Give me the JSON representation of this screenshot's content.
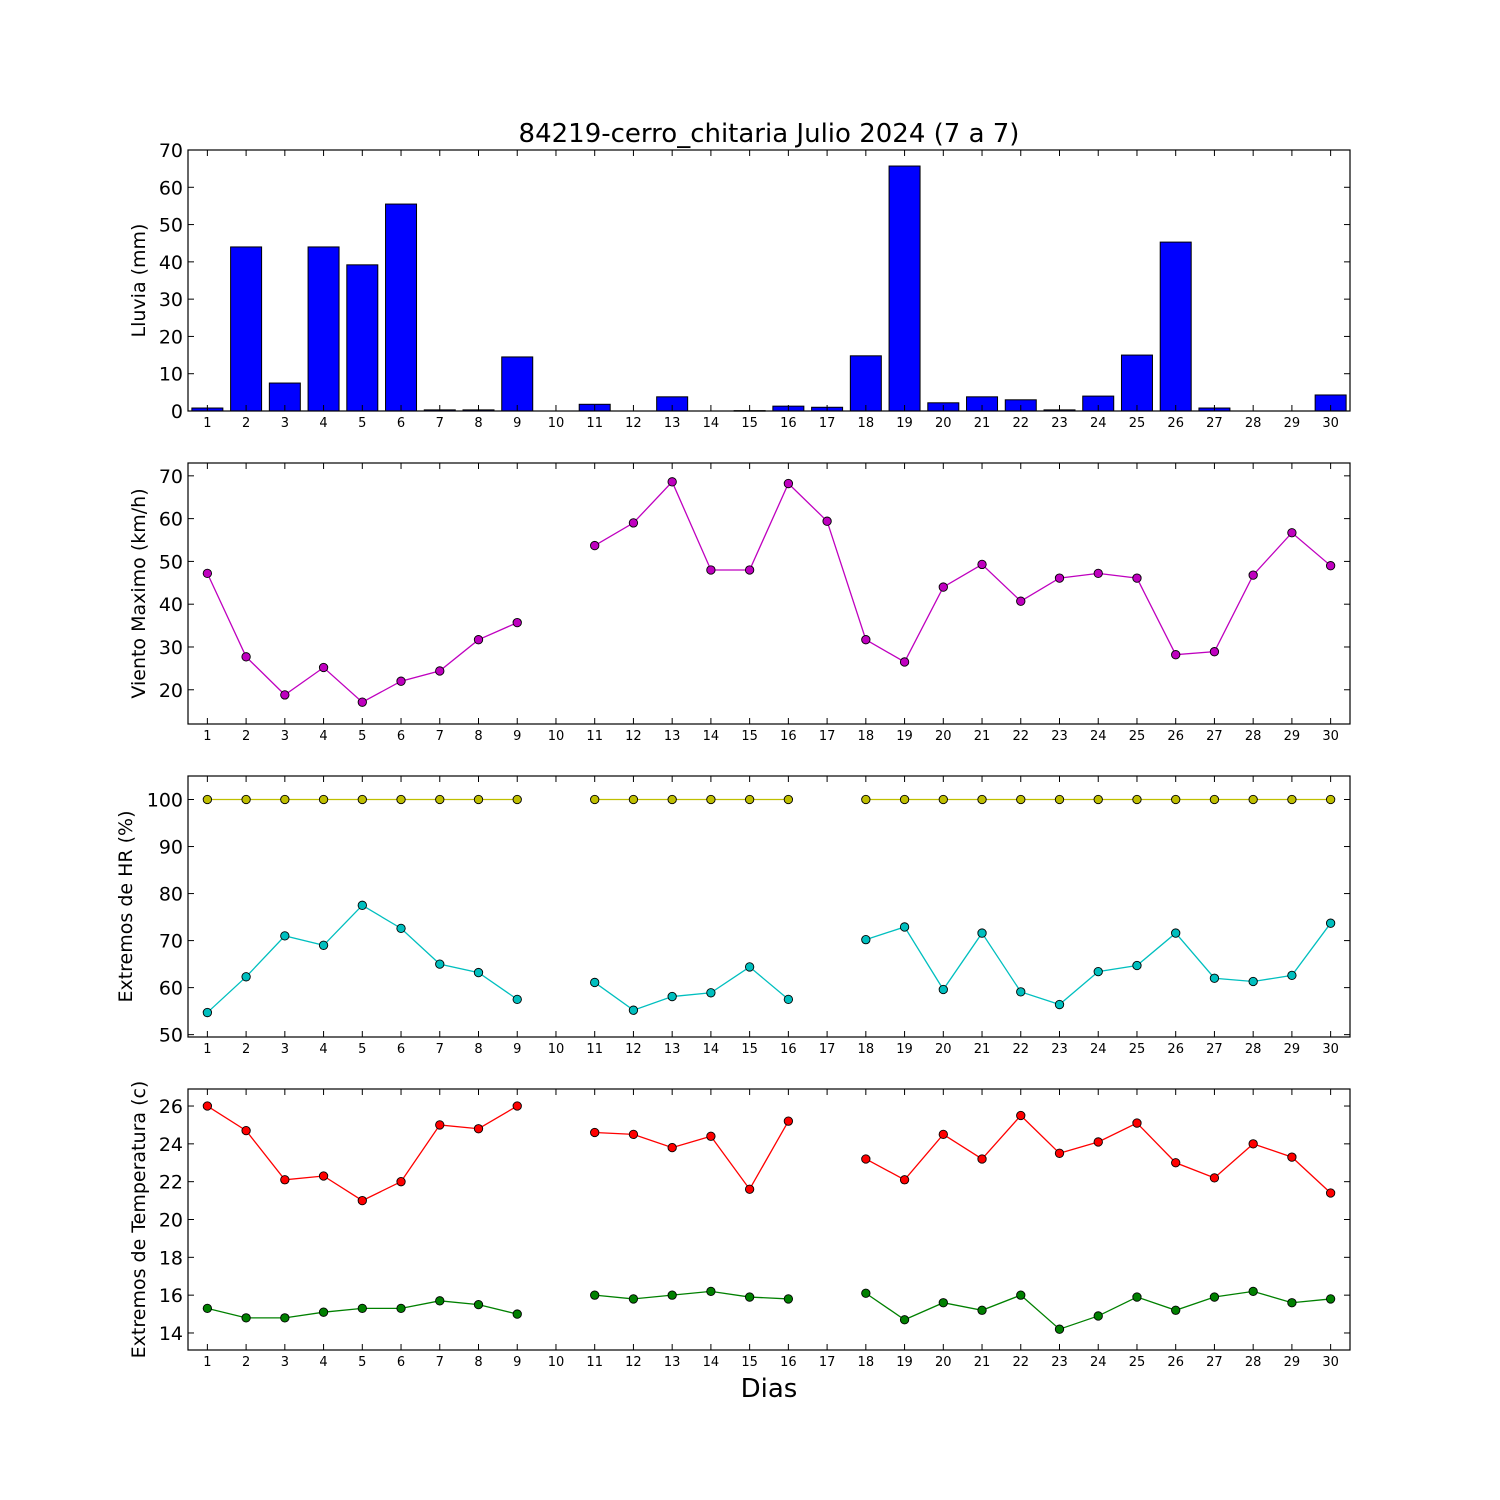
{
  "chart_data": {
    "title": "84219-cerro_chitaria Julio 2024  (7 a 7)",
    "xlabel": "Dias",
    "days": [
      1,
      2,
      3,
      4,
      5,
      6,
      7,
      8,
      9,
      10,
      11,
      12,
      13,
      14,
      15,
      16,
      17,
      18,
      19,
      20,
      21,
      22,
      23,
      24,
      25,
      26,
      27,
      28,
      29,
      30
    ],
    "panels": [
      {
        "type": "bar",
        "ylabel": "Lluvia (mm)",
        "ylim": [
          0,
          70
        ],
        "yticks": [
          0,
          10,
          20,
          30,
          40,
          50,
          60,
          70
        ],
        "series": [
          {
            "color": "#0000ff",
            "values": [
              0.8,
              44,
              7.5,
              44,
              39.2,
              55.5,
              0.3,
              0.3,
              14.5,
              0,
              1.8,
              0,
              3.8,
              0,
              0.1,
              1.3,
              1.0,
              14.8,
              65.7,
              2.2,
              3.8,
              3.0,
              0.3,
              4.0,
              15.0,
              45.3,
              0.8,
              0,
              0,
              4.3
            ]
          }
        ]
      },
      {
        "type": "line",
        "ylabel": "Viento Maximo (km/h)",
        "ylim": [
          12,
          73
        ],
        "yticks": [
          20,
          30,
          40,
          50,
          60,
          70
        ],
        "series": [
          {
            "color": "#bf00bf",
            "values": [
              47.2,
              27.7,
              18.8,
              25.2,
              17.1,
              22.0,
              24.4,
              31.7,
              35.7,
              null,
              53.7,
              59.0,
              68.6,
              48.0,
              48.0,
              68.2,
              59.4,
              31.7,
              26.5,
              44.0,
              49.3,
              40.7,
              46.1,
              47.2,
              46.1,
              28.2,
              28.9,
              46.8,
              56.7,
              49.0
            ]
          }
        ]
      },
      {
        "type": "line",
        "ylabel": "Extremos de HR (%)",
        "ylim": [
          49.5,
          105
        ],
        "yticks": [
          50,
          60,
          70,
          80,
          90,
          100
        ],
        "series": [
          {
            "color": "#bfbf00",
            "values": [
              100,
              100,
              100,
              100,
              100,
              100,
              100,
              100,
              100,
              null,
              100,
              100,
              100,
              100,
              100,
              100,
              null,
              100,
              100,
              100,
              100,
              100,
              100,
              100,
              100,
              100,
              100,
              100,
              100,
              100
            ]
          },
          {
            "color": "#00bfbf",
            "values": [
              54.7,
              62.3,
              71.0,
              69.0,
              77.5,
              72.6,
              65.0,
              63.2,
              57.5,
              null,
              61.1,
              55.2,
              58.1,
              58.9,
              64.4,
              57.5,
              null,
              70.2,
              72.9,
              59.6,
              71.6,
              59.1,
              56.4,
              63.4,
              64.7,
              71.6,
              62.0,
              61.3,
              62.6,
              73.7
            ]
          }
        ]
      },
      {
        "type": "line",
        "ylabel": "Extremos de Temperatura (c)",
        "ylim": [
          13.1,
          26.9
        ],
        "yticks": [
          14,
          16,
          18,
          20,
          22,
          24,
          26
        ],
        "series": [
          {
            "color": "#ff0000",
            "values": [
              26.0,
              24.7,
              22.1,
              22.3,
              21.0,
              22.0,
              25.0,
              24.8,
              26.0,
              null,
              24.6,
              24.5,
              23.8,
              24.4,
              21.6,
              25.2,
              null,
              23.2,
              22.1,
              24.5,
              23.2,
              25.5,
              23.5,
              24.1,
              25.1,
              23.0,
              22.2,
              24.0,
              23.3,
              21.4
            ]
          },
          {
            "color": "#008000",
            "values": [
              15.3,
              14.8,
              14.8,
              15.1,
              15.3,
              15.3,
              15.7,
              15.5,
              15.0,
              null,
              16.0,
              15.8,
              16.0,
              16.2,
              15.9,
              15.8,
              null,
              16.1,
              14.7,
              15.6,
              15.2,
              16.0,
              14.2,
              14.9,
              15.9,
              15.2,
              15.9,
              16.2,
              15.6,
              15.8
            ]
          }
        ]
      }
    ]
  }
}
